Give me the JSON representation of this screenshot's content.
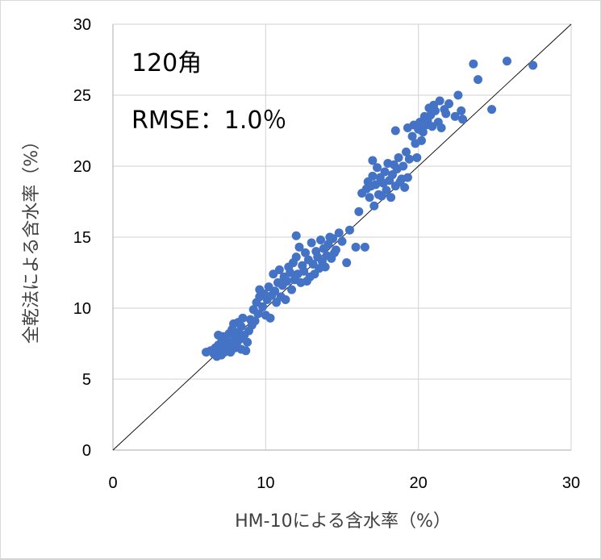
{
  "chart_data": {
    "type": "scatter",
    "xlabel": "HM-10による含水率（%）",
    "ylabel": "全乾法による含水率（%）",
    "xlim": [
      0,
      30
    ],
    "ylim": [
      0,
      30
    ],
    "x_ticks": [
      0,
      10,
      20,
      30
    ],
    "y_ticks": [
      0,
      5,
      10,
      15,
      20,
      25,
      30
    ],
    "grid": true,
    "reference_line": "y = x",
    "annotations": [
      "120角",
      "RMSE：1.0％"
    ],
    "marker_color": "#4472c4",
    "series": [
      {
        "points": [
          [
            6.1,
            6.9
          ],
          [
            6.4,
            7.0
          ],
          [
            6.6,
            6.8
          ],
          [
            6.7,
            7.2
          ],
          [
            6.8,
            6.6
          ],
          [
            6.9,
            7.4
          ],
          [
            6.9,
            8.1
          ],
          [
            7.0,
            7.0
          ],
          [
            7.1,
            6.7
          ],
          [
            7.1,
            7.6
          ],
          [
            7.2,
            8.0
          ],
          [
            7.3,
            6.9
          ],
          [
            7.3,
            7.3
          ],
          [
            7.4,
            7.8
          ],
          [
            7.5,
            7.1
          ],
          [
            7.6,
            8.2
          ],
          [
            7.6,
            7.4
          ],
          [
            7.7,
            6.9
          ],
          [
            7.8,
            8.5
          ],
          [
            7.8,
            7.6
          ],
          [
            7.9,
            8.9
          ],
          [
            8.0,
            7.2
          ],
          [
            8.0,
            8.0
          ],
          [
            8.1,
            7.5
          ],
          [
            8.2,
            9.0
          ],
          [
            8.2,
            8.3
          ],
          [
            8.3,
            7.8
          ],
          [
            8.4,
            7.1
          ],
          [
            8.4,
            8.7
          ],
          [
            8.5,
            9.3
          ],
          [
            8.6,
            8.1
          ],
          [
            8.7,
            7.0
          ],
          [
            8.8,
            7.6
          ],
          [
            8.9,
            8.4
          ],
          [
            9.0,
            9.2
          ],
          [
            9.1,
            8.8
          ],
          [
            9.2,
            9.9
          ],
          [
            9.3,
            9.1
          ],
          [
            9.4,
            10.4
          ],
          [
            9.5,
            9.6
          ],
          [
            9.6,
            10.8
          ],
          [
            9.6,
            11.3
          ],
          [
            9.8,
            10.1
          ],
          [
            9.9,
            11.0
          ],
          [
            10.0,
            9.5
          ],
          [
            10.1,
            10.6
          ],
          [
            10.2,
            11.5
          ],
          [
            10.3,
            9.3
          ],
          [
            10.4,
            10.9
          ],
          [
            10.5,
            12.4
          ],
          [
            10.6,
            11.2
          ],
          [
            10.7,
            10.4
          ],
          [
            10.8,
            11.8
          ],
          [
            10.9,
            12.7
          ],
          [
            11.0,
            10.8
          ],
          [
            11.1,
            11.6
          ],
          [
            11.2,
            12.2
          ],
          [
            11.3,
            10.6
          ],
          [
            11.4,
            11.9
          ],
          [
            11.5,
            12.9
          ],
          [
            11.6,
            12.5
          ],
          [
            11.7,
            11.3
          ],
          [
            11.8,
            13.2
          ],
          [
            11.9,
            12.0
          ],
          [
            12.0,
            13.6
          ],
          [
            12.0,
            15.1
          ],
          [
            12.1,
            12.4
          ],
          [
            12.2,
            14.3
          ],
          [
            12.3,
            11.8
          ],
          [
            12.4,
            13.0
          ],
          [
            12.5,
            12.6
          ],
          [
            12.6,
            13.9
          ],
          [
            12.7,
            11.9
          ],
          [
            12.8,
            13.4
          ],
          [
            12.9,
            12.2
          ],
          [
            13.0,
            14.6
          ],
          [
            13.1,
            13.1
          ],
          [
            13.2,
            12.4
          ],
          [
            13.3,
            14.0
          ],
          [
            13.4,
            13.6
          ],
          [
            13.5,
            12.8
          ],
          [
            13.6,
            14.8
          ],
          [
            13.7,
            13.3
          ],
          [
            13.8,
            14.2
          ],
          [
            13.9,
            12.9
          ],
          [
            14.0,
            13.7
          ],
          [
            14.1,
            14.5
          ],
          [
            14.2,
            15.0
          ],
          [
            14.3,
            13.5
          ],
          [
            14.4,
            14.9
          ],
          [
            14.5,
            13.9
          ],
          [
            14.6,
            14.1
          ],
          [
            14.8,
            15.3
          ],
          [
            15.0,
            14.7
          ],
          [
            15.3,
            13.2
          ],
          [
            15.5,
            15.5
          ],
          [
            15.9,
            14.3
          ],
          [
            16.1,
            16.8
          ],
          [
            16.3,
            18.1
          ],
          [
            16.5,
            14.3
          ],
          [
            16.6,
            18.4
          ],
          [
            16.7,
            18.9
          ],
          [
            16.8,
            17.8
          ],
          [
            16.9,
            18.6
          ],
          [
            17.0,
            19.3
          ],
          [
            17.0,
            20.4
          ],
          [
            17.1,
            17.2
          ],
          [
            17.2,
            18.7
          ],
          [
            17.3,
            19.9
          ],
          [
            17.4,
            18.0
          ],
          [
            17.5,
            19.2
          ],
          [
            17.6,
            17.9
          ],
          [
            17.7,
            18.8
          ],
          [
            17.8,
            19.6
          ],
          [
            17.9,
            18.3
          ],
          [
            18.0,
            20.2
          ],
          [
            18.1,
            19.0
          ],
          [
            18.2,
            17.8
          ],
          [
            18.3,
            19.4
          ],
          [
            18.4,
            20.1
          ],
          [
            18.5,
            18.6
          ],
          [
            18.6,
            19.8
          ],
          [
            18.7,
            20.6
          ],
          [
            18.8,
            18.9
          ],
          [
            18.9,
            19.1
          ],
          [
            19.0,
            20.0
          ],
          [
            19.1,
            18.5
          ],
          [
            19.2,
            21.0
          ],
          [
            19.3,
            19.2
          ],
          [
            19.4,
            20.5
          ],
          [
            19.6,
            22.1
          ],
          [
            19.7,
            22.9
          ],
          [
            19.8,
            21.6
          ],
          [
            19.9,
            20.6
          ],
          [
            20.0,
            22.6
          ],
          [
            20.1,
            23.1
          ],
          [
            20.2,
            21.8
          ],
          [
            20.3,
            22.4
          ],
          [
            20.4,
            23.5
          ],
          [
            20.5,
            22.9
          ],
          [
            20.6,
            23.2
          ],
          [
            20.7,
            24.1
          ],
          [
            20.8,
            23.6
          ],
          [
            20.9,
            22.8
          ],
          [
            21.0,
            24.3
          ],
          [
            21.1,
            23.9
          ],
          [
            21.3,
            23.1
          ],
          [
            21.4,
            24.6
          ],
          [
            21.5,
            22.7
          ],
          [
            21.7,
            24.0
          ],
          [
            21.8,
            23.7
          ],
          [
            22.0,
            24.4
          ],
          [
            22.4,
            23.5
          ],
          [
            22.6,
            25.0
          ],
          [
            22.8,
            23.9
          ],
          [
            22.9,
            23.3
          ],
          [
            23.6,
            27.2
          ],
          [
            23.9,
            26.1
          ],
          [
            24.8,
            24.0
          ],
          [
            25.8,
            27.4
          ],
          [
            27.5,
            27.1
          ],
          [
            18.5,
            22.5
          ],
          [
            19.3,
            22.7
          ]
        ]
      }
    ]
  }
}
